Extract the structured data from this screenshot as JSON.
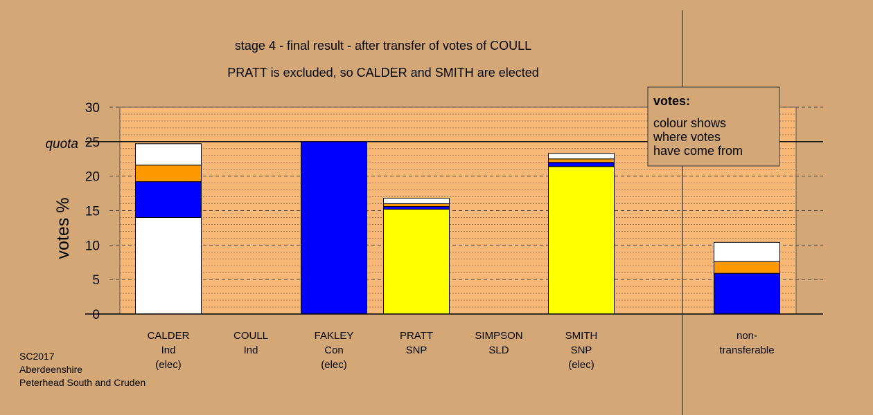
{
  "chart_data": {
    "type": "bar",
    "stacked": true,
    "title_lines": [
      "stage 4 - final result - after transfer of votes of COULL",
      "PRATT is excluded, so CALDER and SMITH are elected"
    ],
    "ylabel": "votes %",
    "ylim": [
      0,
      30
    ],
    "yticks": [
      0,
      5,
      10,
      15,
      20,
      25,
      30
    ],
    "quota": {
      "value": 25,
      "label": "quota"
    },
    "categories": [
      {
        "lines": [
          "CALDER",
          "Ind",
          "(elec)"
        ]
      },
      {
        "lines": [
          "COULL",
          "Ind"
        ]
      },
      {
        "lines": [
          "FAKLEY",
          "Con",
          "(elec)"
        ]
      },
      {
        "lines": [
          "PRATT",
          "SNP"
        ]
      },
      {
        "lines": [
          "SIMPSON",
          "SLD"
        ]
      },
      {
        "lines": [
          "SMITH",
          "SNP",
          "(elec)"
        ]
      },
      {
        "lines": [
          "non-",
          "transferable"
        ]
      }
    ],
    "bars": [
      [
        {
          "value": 14.0,
          "color": "#ffffff"
        },
        {
          "value": 5.2,
          "color": "#0000ff"
        },
        {
          "value": 2.4,
          "color": "#ff9900"
        },
        {
          "value": 3.1,
          "color": "#ffffff"
        }
      ],
      [],
      [
        {
          "value": 25.0,
          "color": "#0000ff"
        }
      ],
      [
        {
          "value": 15.2,
          "color": "#ffff00"
        },
        {
          "value": 0.4,
          "color": "#0000ff"
        },
        {
          "value": 0.4,
          "color": "#ff9900"
        },
        {
          "value": 0.8,
          "color": "#ffffff"
        }
      ],
      [],
      [
        {
          "value": 21.4,
          "color": "#ffff00"
        },
        {
          "value": 0.6,
          "color": "#0000ff"
        },
        {
          "value": 0.5,
          "color": "#ff9900"
        },
        {
          "value": 0.8,
          "color": "#ffffff"
        }
      ],
      [
        {
          "value": 5.9,
          "color": "#0000ff"
        },
        {
          "value": 1.7,
          "color": "#ff9900"
        },
        {
          "value": 2.8,
          "color": "#ffffff"
        }
      ]
    ],
    "legend": {
      "title": "votes:",
      "lines": [
        "colour shows",
        "where votes",
        "have come from"
      ],
      "position": "top-right"
    },
    "grid": true
  },
  "footer": [
    "SC2017",
    "Aberdeenshire",
    "Peterhead South and Cruden"
  ],
  "colors": {
    "background": "#d4a876",
    "plot_area": "#f8b978"
  }
}
